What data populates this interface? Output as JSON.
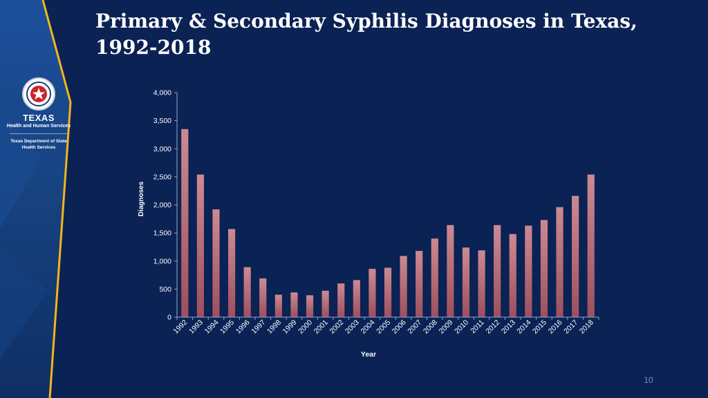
{
  "slide": {
    "title": "Primary & Secondary Syphilis Diagnoses in Texas, 1992-2018",
    "page_number": "10",
    "colors": {
      "background": "#0b2255",
      "accent_stripe": "#f2b71a",
      "bar_top": "#cd8a93",
      "bar_bottom": "#9d4f5c",
      "axis": "#9aa6bf",
      "text": "#ffffff"
    }
  },
  "logo": {
    "icon": "texas-seal-icon",
    "agency": "TEXAS",
    "agency_sub": "Health and Human Services",
    "dept": "Texas Department of State Health Services"
  },
  "chart_data": {
    "type": "bar",
    "title": "",
    "xlabel": "Year",
    "ylabel": "Diagnoses",
    "ylim": [
      0,
      4000
    ],
    "yticks": [
      0,
      500,
      1000,
      1500,
      2000,
      2500,
      3000,
      3500,
      4000
    ],
    "ytick_labels": [
      "0",
      "500",
      "1,000",
      "1,500",
      "2,000",
      "2,500",
      "3,000",
      "3,500",
      "4,000"
    ],
    "categories": [
      "1992",
      "1993",
      "1994",
      "1995",
      "1996",
      "1997",
      "1998",
      "1999",
      "2000",
      "2001",
      "2002",
      "2003",
      "2004",
      "2005",
      "2006",
      "2007",
      "2008",
      "2009",
      "2010",
      "2011",
      "2012",
      "2013",
      "2014",
      "2015",
      "2016",
      "2017",
      "2018"
    ],
    "values": [
      3350,
      2540,
      1920,
      1570,
      890,
      690,
      400,
      440,
      390,
      470,
      600,
      660,
      860,
      880,
      1090,
      1180,
      1400,
      1640,
      1240,
      1190,
      1640,
      1480,
      1630,
      1730,
      1960,
      2160,
      2540
    ],
    "grid": false,
    "legend": "none"
  }
}
